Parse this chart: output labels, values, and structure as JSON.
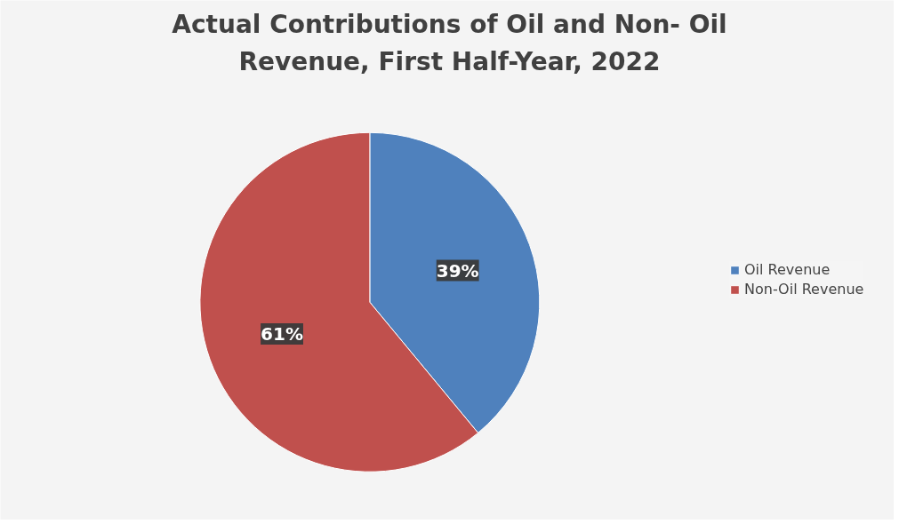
{
  "chart_data": {
    "type": "pie",
    "title": "Actual Contributions of Oil and Non- Oil Revenue, First Half-Year, 2022",
    "categories": [
      "Oil Revenue",
      "Non-Oil Revenue"
    ],
    "values": [
      39,
      61
    ],
    "colors": [
      "#4f81bd",
      "#c0504d"
    ],
    "value_labels": [
      "39%",
      "61%"
    ],
    "legend": "right"
  }
}
